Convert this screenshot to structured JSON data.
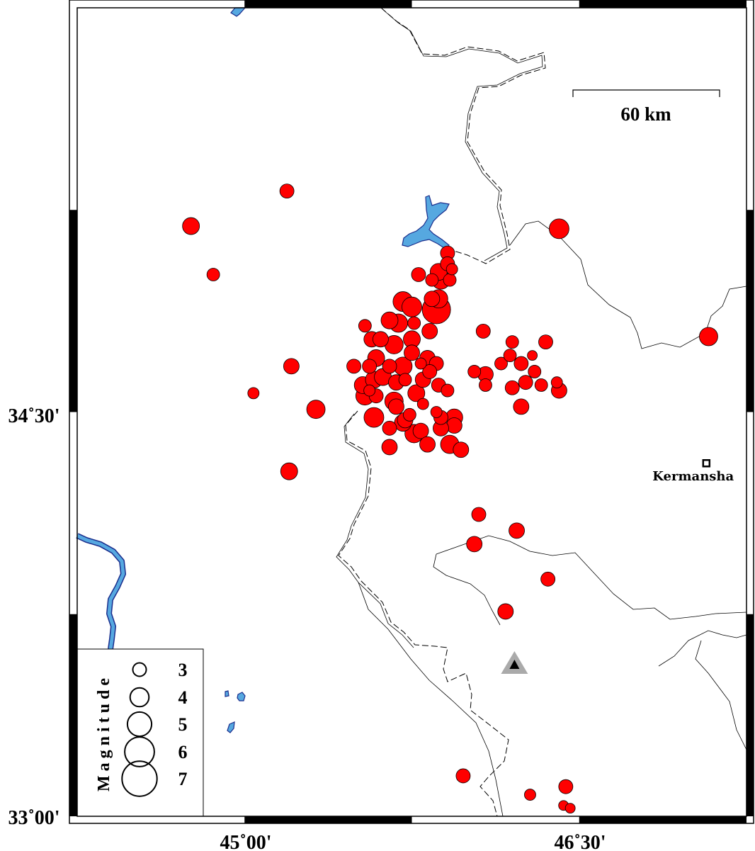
{
  "map": {
    "extent": {
      "lon_min": 44.25,
      "lon_max": 47.25,
      "lat_min": 33.0,
      "lat_max": 36.0
    },
    "colors": {
      "event_fill": "#ff0000",
      "water": "#56a8e0",
      "water_outline": "#1a2d8c",
      "frame": "#000000"
    },
    "axis_labels": {
      "lat": [
        {
          "value": 34.5,
          "text": "34˚30'"
        },
        {
          "value": 33.0,
          "text": "33˚00'"
        }
      ],
      "lon": [
        {
          "value": 45.0,
          "text": "45˚00'"
        },
        {
          "value": 46.5,
          "text": "46˚30'"
        }
      ]
    },
    "scale_bar": {
      "label": "60 km"
    },
    "city": {
      "name": "Kermansha",
      "lon": 47.07,
      "lat": 34.31,
      "icon": "square-marker-icon"
    },
    "station": {
      "lon": 46.21,
      "lat": 33.56,
      "icon": "triangle-station-icon"
    },
    "legend": {
      "title": "Magnitude",
      "items": [
        {
          "mag": 3,
          "label": "3"
        },
        {
          "mag": 4,
          "label": "4"
        },
        {
          "mag": 5,
          "label": "5"
        },
        {
          "mag": 6,
          "label": "6"
        },
        {
          "mag": 7,
          "label": "7"
        }
      ]
    },
    "events": [
      [
        45.19,
        35.32,
        3.0
      ],
      [
        44.76,
        35.19,
        3.5
      ],
      [
        44.86,
        35.01,
        2.75
      ],
      [
        46.41,
        35.18,
        4.0
      ],
      [
        47.08,
        34.78,
        3.75
      ],
      [
        45.21,
        34.67,
        3.25
      ],
      [
        45.04,
        34.57,
        2.5
      ],
      [
        45.32,
        34.51,
        3.75
      ],
      [
        45.2,
        34.28,
        3.5
      ],
      [
        46.05,
        34.12,
        3.0
      ],
      [
        46.22,
        34.06,
        3.25
      ],
      [
        46.03,
        34.01,
        3.25
      ],
      [
        46.36,
        33.88,
        3.0
      ],
      [
        46.17,
        33.76,
        3.25
      ],
      [
        45.98,
        33.15,
        3.0
      ],
      [
        46.28,
        33.08,
        2.5
      ],
      [
        46.44,
        33.11,
        3.0
      ],
      [
        46.43,
        33.04,
        2.25
      ],
      [
        46.46,
        33.03,
        2.25
      ],
      [
        45.91,
        35.09,
        3.0
      ],
      [
        45.91,
        35.05,
        3.0
      ],
      [
        45.93,
        35.03,
        2.5
      ],
      [
        45.87,
        35.02,
        3.5
      ],
      [
        45.78,
        35.01,
        3.0
      ],
      [
        45.84,
        34.99,
        2.75
      ],
      [
        45.92,
        34.99,
        2.75
      ],
      [
        45.88,
        34.99,
        3.75
      ],
      [
        45.87,
        34.92,
        3.75
      ],
      [
        45.84,
        34.92,
        3.25
      ],
      [
        45.86,
        34.88,
        5.5
      ],
      [
        45.71,
        34.91,
        4.0
      ],
      [
        45.75,
        34.89,
        4.0
      ],
      [
        45.65,
        34.84,
        3.5
      ],
      [
        45.69,
        34.83,
        3.75
      ],
      [
        45.76,
        34.83,
        2.75
      ],
      [
        45.83,
        34.8,
        3.25
      ],
      [
        45.54,
        34.82,
        2.75
      ],
      [
        45.57,
        34.77,
        3.25
      ],
      [
        45.61,
        34.77,
        3.25
      ],
      [
        45.67,
        34.75,
        3.75
      ],
      [
        45.75,
        34.77,
        3.5
      ],
      [
        45.59,
        34.7,
        3.5
      ],
      [
        45.75,
        34.72,
        3.25
      ],
      [
        45.49,
        34.67,
        3.0
      ],
      [
        45.56,
        34.67,
        3.0
      ],
      [
        45.65,
        34.67,
        3.0
      ],
      [
        45.71,
        34.67,
        3.75
      ],
      [
        45.82,
        34.7,
        3.25
      ],
      [
        45.86,
        34.68,
        3.0
      ],
      [
        45.79,
        34.68,
        2.5
      ],
      [
        45.83,
        34.65,
        3.0
      ],
      [
        45.91,
        34.58,
        2.75
      ],
      [
        45.87,
        34.6,
        3.0
      ],
      [
        45.53,
        34.6,
        3.5
      ],
      [
        45.58,
        34.62,
        3.5
      ],
      [
        45.56,
        34.58,
        2.5
      ],
      [
        45.62,
        34.63,
        3.5
      ],
      [
        45.68,
        34.61,
        3.25
      ],
      [
        45.72,
        34.62,
        2.75
      ],
      [
        45.8,
        34.62,
        3.25
      ],
      [
        45.54,
        34.56,
        3.75
      ],
      [
        45.59,
        34.56,
        3.0
      ],
      [
        45.67,
        34.54,
        3.75
      ],
      [
        45.77,
        34.57,
        3.5
      ],
      [
        45.8,
        34.53,
        2.5
      ],
      [
        45.86,
        34.5,
        2.5
      ],
      [
        45.58,
        34.48,
        4.0
      ],
      [
        45.68,
        34.52,
        3.25
      ],
      [
        45.74,
        34.49,
        2.75
      ],
      [
        45.65,
        34.44,
        3.0
      ],
      [
        45.72,
        34.47,
        3.25
      ],
      [
        45.79,
        34.43,
        3.25
      ],
      [
        45.88,
        34.48,
        3.0
      ],
      [
        45.94,
        34.48,
        3.5
      ],
      [
        45.94,
        34.45,
        3.25
      ],
      [
        45.88,
        34.44,
        3.25
      ],
      [
        45.82,
        34.38,
        3.25
      ],
      [
        45.92,
        34.38,
        3.75
      ],
      [
        45.97,
        34.36,
        3.25
      ],
      [
        45.65,
        34.37,
        3.25
      ],
      [
        45.76,
        34.42,
        3.75
      ],
      [
        45.71,
        34.46,
        3.5
      ],
      [
        46.07,
        34.8,
        3.0
      ],
      [
        46.2,
        34.76,
        2.75
      ],
      [
        46.35,
        34.76,
        3.0
      ],
      [
        46.15,
        34.68,
        2.75
      ],
      [
        46.19,
        34.71,
        2.75
      ],
      [
        46.24,
        34.68,
        3.0
      ],
      [
        46.29,
        34.71,
        2.25
      ],
      [
        46.3,
        34.65,
        2.75
      ],
      [
        46.26,
        34.61,
        3.0
      ],
      [
        46.33,
        34.6,
        2.75
      ],
      [
        46.4,
        34.61,
        2.5
      ],
      [
        46.41,
        34.58,
        3.25
      ],
      [
        46.2,
        34.59,
        3.0
      ],
      [
        46.24,
        34.52,
        3.25
      ],
      [
        46.03,
        34.65,
        2.75
      ],
      [
        46.08,
        34.64,
        3.25
      ],
      [
        46.08,
        34.6,
        2.75
      ]
    ]
  }
}
